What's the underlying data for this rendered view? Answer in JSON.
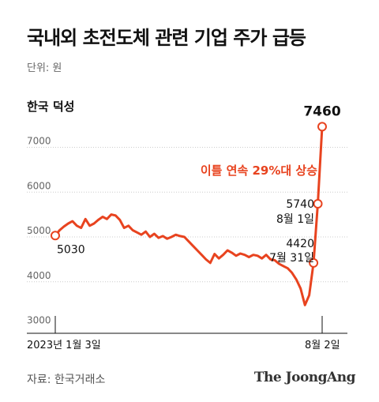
{
  "header": {
    "title": "국내외 초전도체 관련 기업 주가 급등",
    "unit": "단위: 원",
    "subtitle": "한국 덕성"
  },
  "footer": {
    "source": "자료: 한국거래소",
    "brand": "The JoongAng"
  },
  "colors": {
    "line": "#e8431f",
    "grid": "#cccccc",
    "axis": "#111111",
    "annotation": "#e8431f"
  },
  "chart_data": {
    "type": "line",
    "title": "한국 덕성",
    "xlabel": "",
    "ylabel": "",
    "ylim": [
      3000,
      7500
    ],
    "yticks": [
      3000,
      4000,
      5000,
      6000,
      7000
    ],
    "grid": true,
    "x_tick_labels": [
      "2023년 1월 3일",
      "8월 2일"
    ],
    "series": [
      {
        "values": [
          5030,
          5150,
          5230,
          5300,
          5350,
          5250,
          5200,
          5400,
          5250,
          5300,
          5380,
          5450,
          5400,
          5500,
          5480,
          5380,
          5200,
          5250,
          5150,
          5100,
          5050,
          5120,
          5000,
          5070,
          4980,
          5020,
          4960,
          5000,
          5050,
          5020,
          5000,
          4900,
          4800,
          4700,
          4600,
          4500,
          4420,
          4620,
          4520,
          4600,
          4700,
          4650,
          4580,
          4630,
          4600,
          4550,
          4600,
          4580,
          4520,
          4600,
          4500,
          4480,
          4400,
          4350,
          4300,
          4200,
          4050,
          3850,
          3480,
          3700,
          4420,
          5740,
          7460
        ]
      }
    ],
    "annotations": [
      {
        "label": "5030"
      },
      {
        "label": "4420",
        "sublabel": "7월 31일"
      },
      {
        "label": "5740",
        "sublabel": "8월 1일"
      },
      {
        "label": "7460"
      },
      {
        "label": "이틀 연속 29%대 상승"
      }
    ]
  }
}
